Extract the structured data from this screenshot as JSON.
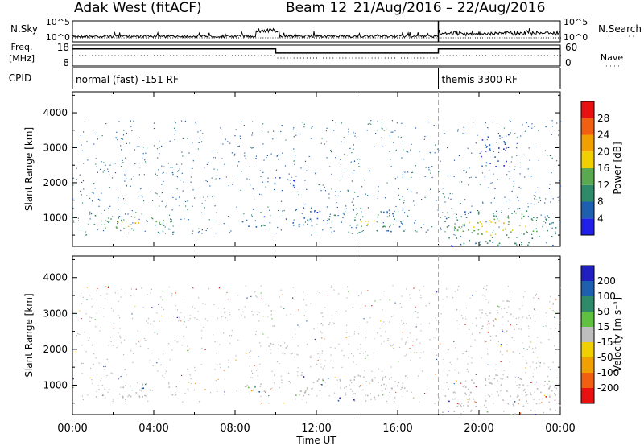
{
  "header": {
    "radar": "Adak West (fitACF)",
    "beam": "Beam 12",
    "dates": "21/Aug/2016 – 22/Aug/2016"
  },
  "colors": {
    "power": [
      "#2020e8",
      "#1f5fb0",
      "#2f8a6a",
      "#5aa850",
      "#f0d000",
      "#f0a000",
      "#f06010",
      "#e81010"
    ],
    "velocity": [
      "#e81010",
      "#f06010",
      "#f0a000",
      "#f0d000",
      "#bebebe",
      "#60c040",
      "#2f8a6a",
      "#1f5fb0",
      "#2020c0"
    ],
    "ground_scatter": "#b8b8b8"
  },
  "chart_data": [
    {
      "type": "line",
      "panel": "noise",
      "left_labels": [
        "N.Sky"
      ],
      "right_labels": [
        "N.Search"
      ],
      "left_ticks": [
        "10^5",
        "10^0"
      ],
      "right_ticks": [
        "10^5",
        "10^0"
      ],
      "note": "noise sky (solid) and search noise (dotted) time series"
    },
    {
      "type": "line",
      "panel": "frequency",
      "left_label": "Freq. [MHz]",
      "left_ticks": [
        "18",
        "8"
      ],
      "right_label": "Nave",
      "right_ticks": [
        "60",
        "0"
      ],
      "x_hours": [
        0,
        10,
        10,
        18,
        18,
        24
      ],
      "freq_level": [
        0.82,
        0.82,
        0.62,
        0.62,
        0.82,
        0.82
      ]
    },
    {
      "type": "table",
      "panel": "cpid",
      "label": "CPID",
      "segments": [
        {
          "start_hour": 0,
          "end_hour": 18,
          "text": "normal (fast) -151 RF"
        },
        {
          "start_hour": 18,
          "end_hour": 24,
          "text": "themis 3300 RF"
        }
      ]
    },
    {
      "type": "heatmap",
      "panel": "power",
      "ylabel": "Slant Range [km]",
      "yticks": [
        1000,
        2000,
        3000,
        4000
      ],
      "ylim": [
        180,
        4600
      ],
      "colorbar_label": "Power [dB]",
      "colorbar_ticks": [
        4,
        8,
        12,
        16,
        20,
        24,
        28
      ],
      "colorbar_range": [
        0,
        32
      ],
      "blobs": [
        {
          "t0": 1.0,
          "t1": 5.0,
          "r0": 650,
          "r1": 1100,
          "level": 18
        },
        {
          "t0": 8.3,
          "t1": 9.7,
          "r0": 650,
          "r1": 1100,
          "level": 10
        },
        {
          "t0": 10.3,
          "t1": 12.5,
          "r0": 700,
          "r1": 1300,
          "level": 8
        },
        {
          "t0": 12.5,
          "t1": 16.5,
          "r0": 550,
          "r1": 1300,
          "level": 14
        },
        {
          "t0": 9.5,
          "t1": 11.0,
          "r0": 1850,
          "r1": 2200,
          "level": 7
        },
        {
          "t0": 18.0,
          "t1": 24.0,
          "r0": 250,
          "r1": 1300,
          "level": 16
        },
        {
          "t0": 20.0,
          "t1": 21.5,
          "r0": 2300,
          "r1": 3400,
          "level": 6
        },
        {
          "t0": 18.0,
          "t1": 24.0,
          "r0": 180,
          "r1": 350,
          "level": 10
        }
      ]
    },
    {
      "type": "heatmap",
      "panel": "velocity",
      "ylabel": "Slant Range [km]",
      "yticks": [
        1000,
        2000,
        3000,
        4000
      ],
      "ylim": [
        180,
        4600
      ],
      "colorbar_label": "Velocity [m s⁻¹]",
      "colorbar_ticks": [
        -200,
        -100,
        -50,
        -15,
        15,
        50,
        100,
        200
      ],
      "xlabel": "Time UT",
      "xticks": [
        "00:00",
        "04:00",
        "08:00",
        "12:00",
        "16:00",
        "20:00",
        "00:00"
      ],
      "xtick_hours": [
        0,
        4,
        8,
        12,
        16,
        20,
        24
      ],
      "xlim": [
        0,
        24
      ]
    }
  ]
}
